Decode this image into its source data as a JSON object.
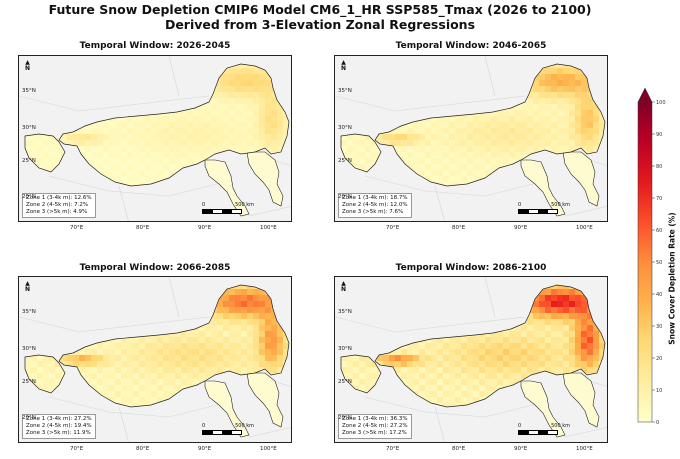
{
  "figure": {
    "title_line1": "Future Snow Depletion CMIP6 Model CM6_1_HR SSP585_Tmax (2026 to 2100)",
    "title_line2": "Derived from 3-Elevation Zonal Regressions"
  },
  "lat_labels": [
    "35°N",
    "30°N",
    "25°N",
    "20°N"
  ],
  "lon_labels": [
    "70°E",
    "80°E",
    "90°E",
    "100°E"
  ],
  "north_label": "N",
  "scale_labels": {
    "start": "0",
    "end": "500 km"
  },
  "panels": [
    {
      "title": "Temporal Window: 2026-2045",
      "intensity": 0.25,
      "zones": [
        "Zone 1 (3-4k m): 12.6%",
        "Zone 2 (4-5k m): 7.2%",
        "Zone 3 (>5k m): 4.9%"
      ]
    },
    {
      "title": "Temporal Window: 2046-2065",
      "intensity": 0.38,
      "zones": [
        "Zone 1 (3-4k m): 18.7%",
        "Zone 2 (4-5k m): 12.0%",
        "Zone 3 (>5k m): 7.6%"
      ]
    },
    {
      "title": "Temporal Window: 2066-2085",
      "intensity": 0.55,
      "zones": [
        "Zone 1 (3-4k m): 27.2%",
        "Zone 2 (4-5k m): 19.4%",
        "Zone 3 (>5k m): 11.9%"
      ]
    },
    {
      "title": "Temporal Window: 2086-2100",
      "intensity": 0.72,
      "zones": [
        "Zone 1 (3-4k m): 36.3%",
        "Zone 2 (4-5k m): 27.2%",
        "Zone 3 (>5k m): 17.2%"
      ]
    }
  ],
  "colorbar": {
    "label": "Snow Cover Depletion Rate (%)",
    "ticks": [
      "0",
      "10",
      "20",
      "30",
      "40",
      "50",
      "60",
      "70",
      "80",
      "90",
      "100"
    ],
    "colors": [
      "#ffffcc",
      "#ffeda0",
      "#fed976",
      "#feb24c",
      "#fd8d3c",
      "#fc4e2a",
      "#e31a1c",
      "#bd0026",
      "#800026"
    ]
  }
}
